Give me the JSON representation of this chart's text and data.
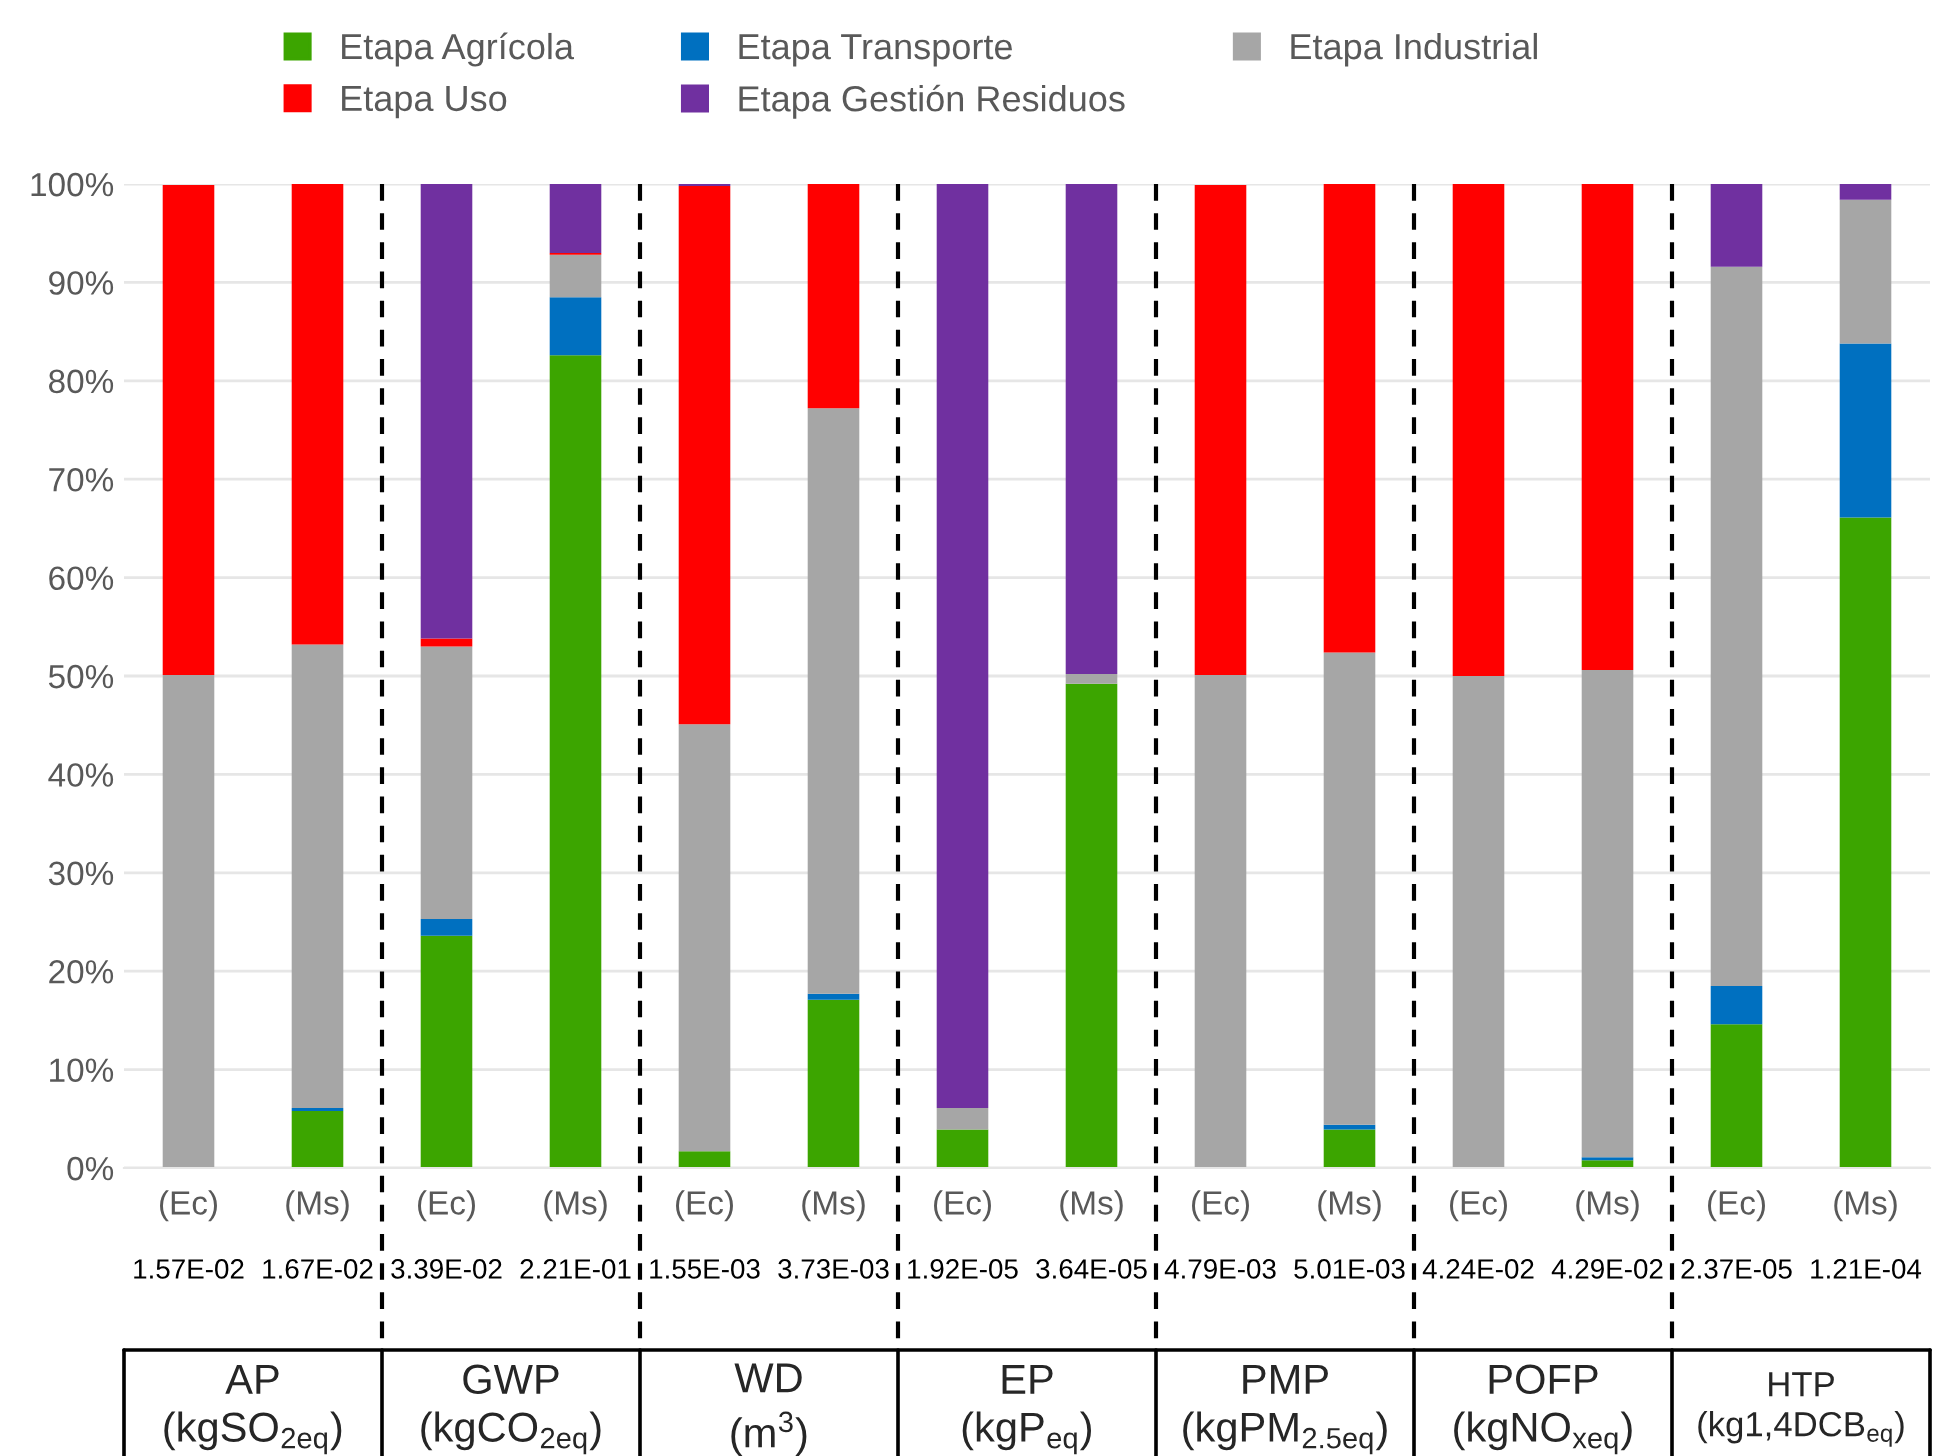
{
  "chart_data": {
    "type": "bar",
    "stacked": true,
    "categories": [
      "(Ec)",
      "(Ms)",
      "(Ec)",
      "(Ms)",
      "(Ec)",
      "(Ms)",
      "(Ec)",
      "(Ms)",
      "(Ec)",
      "(Ms)",
      "(Ec)",
      "(Ms)",
      "(Ec)",
      "(Ms)"
    ],
    "series": [
      {
        "name": "Etapa Agrícola",
        "color": "#3ca500",
        "values": [
          null,
          5.8,
          23.6,
          82.6,
          1.7,
          17.1,
          3.9,
          49.2,
          null,
          3.9,
          0,
          0.8,
          14.6,
          66.1
        ]
      },
      {
        "name": "Etapa Transporte",
        "color": "#0070c0",
        "values": [
          0,
          0.3,
          1.7,
          5.9,
          0,
          0.6,
          0,
          0,
          0,
          0.5,
          0,
          0.3,
          3.9,
          17.7
        ]
      },
      {
        "name": "Etapa Industrial",
        "color": "#a6a6a6",
        "values": [
          50.1,
          47.1,
          27.7,
          4.3,
          43.4,
          59.5,
          2.2,
          1.0,
          50.1,
          48.0,
          50.0,
          49.5,
          73.1,
          14.6
        ]
      },
      {
        "name": "Etapa Uso",
        "color": "#ff0000",
        "values": [
          49.8,
          46.8,
          0.8,
          0.2,
          54.7,
          22.8,
          0,
          0,
          49.8,
          47.6,
          50.0,
          49.4,
          0,
          0
        ]
      },
      {
        "name": "Etapa Gestión Residuos",
        "color": "#7030a0",
        "values": [
          0,
          0,
          46.2,
          7.0,
          0.2,
          0,
          93.9,
          49.8,
          0,
          0,
          0,
          0,
          8.4,
          1.6
        ]
      }
    ],
    "ylim": [
      0,
      100
    ],
    "yticks": [
      {
        "value": 0,
        "label": "0%"
      },
      {
        "value": 10,
        "label": "10%"
      },
      {
        "value": 20,
        "label": "20%"
      },
      {
        "value": 30,
        "label": "30%"
      },
      {
        "value": 40,
        "label": "40%"
      },
      {
        "value": 50,
        "label": "50%"
      },
      {
        "value": 60,
        "label": "60%"
      },
      {
        "value": 70,
        "label": "70%"
      },
      {
        "value": 80,
        "label": "80%"
      },
      {
        "value": 90,
        "label": "90%"
      },
      {
        "value": 100,
        "label": "100%"
      }
    ],
    "grid": "y",
    "legend": "top",
    "annotations": [
      "1.57E-02",
      "1.67E-02",
      "3.39E-02",
      "2.21E-01",
      "1.55E-03",
      "3.73E-03",
      "1.92E-05",
      "3.64E-05",
      "4.79E-03",
      "5.01E-03",
      "4.24E-02",
      "4.29E-02",
      "2.37E-05",
      "1.21E-04",
      "AP\n(kgSO$_{2eq}$)",
      "GWP\n(kgCO$_{2eq}$)",
      "WD\n(m$^{3}$)",
      "EP\n(kgP$_{eq}$)",
      "PMP\n(kgPM$_{2.5eq}$)",
      "POFP\n(kgNO$_{xeq}$)",
      "HTP\n(kg1,4DCB$_{eq}$)"
    ]
  }
}
